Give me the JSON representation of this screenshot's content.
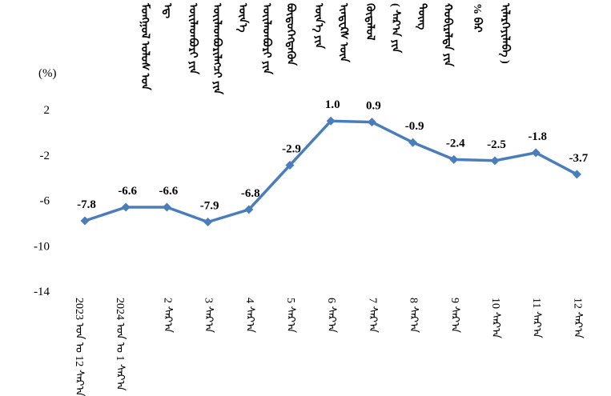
{
  "chart_data": {
    "type": "line",
    "title": [
      "ᠮᠣᠩᠭᠣᠯ ᠤᠯᠤᠰ ᠤᠨ",
      "ᠡᠳ᠋",
      "ᠦᠢᠯᠡᠳᠪᠦᠷᠢ ᠶᠢᠨ",
      "ᠦᠢᠯᠡᠳᠪᠦᠷᠢᠯᠡᠭᠴᠢ ᠶᠢᠨ",
      "ᠦᠨ᠎ᠡ",
      "ᠦᠢᠯᠡᠳᠪᠦᠷᠢ ᠶᠢᠨ",
      "ᠪᠦᠲᠦᠭᠡᠭᠳᠡᠬᠦᠨ",
      "ᠦᠨ᠎ᠡ ᠶᠢᠨ",
      "ᠢᠨᠳᠧᠺᠰ ᠦᠨ",
      "ᠬᠥᠳᠡᠯᠦᠯ",
      "( ᠰᠠᠷ᠎ᠠ ᠶᠢᠨ",
      "ᠳᠦᠩ",
      "ᠬᠤᠪᠢᠷᠠᠯᠲᠠ ᠶᠢᠨ",
      "% ᠪᠠᠷ",
      "ᠢᠯᠡᠷᠬᠡᠶᠢᠯᠡᠪᠡ )"
    ],
    "ylabel": "(%)",
    "ylim": [
      -14,
      2
    ],
    "yticks": [
      "2",
      "-2",
      "-6",
      "-10",
      "-14"
    ],
    "categories": [
      "2023 ᠣᠨ ᠤ 12 ᠰᠠᠷ᠎ᠠ",
      "2024 ᠣᠨ ᠤ 1 ᠰᠠᠷ᠎ᠠ",
      "2 ᠰᠠᠷ᠎ᠠ",
      "3 ᠰᠠᠷ᠎ᠠ",
      "4 ᠰᠠᠷ᠎ᠠ",
      "5 ᠰᠠᠷ᠎ᠠ",
      "6 ᠰᠠᠷ᠎ᠠ",
      "7 ᠰᠠᠷ᠎ᠠ",
      "8 ᠰᠠᠷ᠎ᠠ",
      "9 ᠰᠠᠷ᠎ᠠ",
      "10 ᠰᠠᠷ᠎ᠠ",
      "11 ᠰᠠᠷ᠎ᠠ",
      "12 ᠰᠠᠷ᠎ᠠ"
    ],
    "values": [
      -7.8,
      -6.6,
      -6.6,
      -7.9,
      -6.8,
      -2.9,
      1.0,
      0.9,
      -0.9,
      -2.4,
      -2.5,
      -1.8,
      -3.7
    ],
    "data_labels": [
      "-7.8",
      "-6.6",
      "-6.6",
      "-7.9",
      "-6.8",
      "-2.9",
      "1.0",
      "0.9",
      "-0.9",
      "-2.4",
      "-2.5",
      "-1.8",
      "-3.7"
    ],
    "series_color": "#4A7EBB",
    "marker": "diamond",
    "grid": false,
    "legend": "none"
  }
}
